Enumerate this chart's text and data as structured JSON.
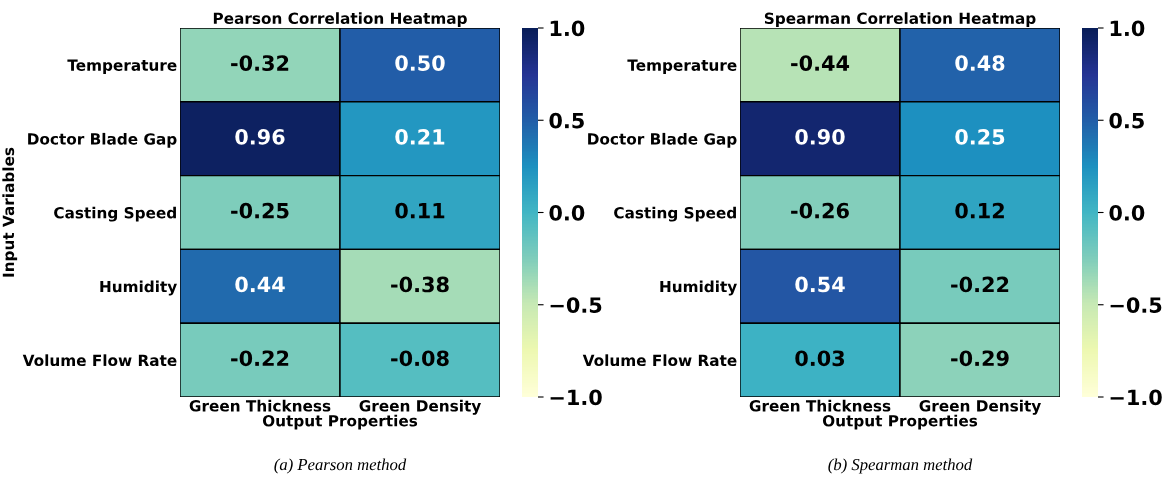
{
  "chart_data": [
    {
      "type": "heatmap",
      "title": "Pearson Correlation Heatmap",
      "xlabel": "Output Properties",
      "ylabel": "Input Variables",
      "categories": [
        "Green Thickness",
        "Green Density"
      ],
      "y_categories": [
        "Temperature",
        "Doctor Blade Gap",
        "Casting Speed",
        "Humidity",
        "Volume Flow Rate"
      ],
      "cells": [
        [
          -0.32,
          0.5
        ],
        [
          0.96,
          0.21
        ],
        [
          -0.25,
          0.11
        ],
        [
          0.44,
          -0.38
        ],
        [
          -0.22,
          -0.08
        ]
      ],
      "cell_labels": [
        [
          "-0.32",
          "0.50"
        ],
        [
          "0.96",
          "0.21"
        ],
        [
          "-0.25",
          "0.11"
        ],
        [
          "0.44",
          "-0.38"
        ],
        [
          "-0.22",
          "-0.08"
        ]
      ],
      "clim": [
        -1.0,
        1.0
      ],
      "cticks": [
        {
          "value": -1.0,
          "label": "−1.0"
        },
        {
          "value": -0.5,
          "label": "−0.5"
        },
        {
          "value": 0.0,
          "label": "0.0"
        },
        {
          "value": 0.5,
          "label": "0.5"
        },
        {
          "value": 1.0,
          "label": "1.0"
        }
      ],
      "annotations": [
        "(a) Pearson method"
      ]
    },
    {
      "type": "heatmap",
      "title": "Spearman Correlation Heatmap",
      "xlabel": "Output Properties",
      "categories": [
        "Green Thickness",
        "Green Density"
      ],
      "y_categories": [
        "Temperature",
        "Doctor Blade Gap",
        "Casting Speed",
        "Humidity",
        "Volume Flow Rate"
      ],
      "cells": [
        [
          -0.44,
          0.48
        ],
        [
          0.9,
          0.25
        ],
        [
          -0.26,
          0.12
        ],
        [
          0.54,
          -0.22
        ],
        [
          0.03,
          -0.29
        ]
      ],
      "cell_labels": [
        [
          "-0.44",
          "0.48"
        ],
        [
          "0.90",
          "0.25"
        ],
        [
          "-0.26",
          "0.12"
        ],
        [
          "0.54",
          "-0.22"
        ],
        [
          "0.03",
          "-0.29"
        ]
      ],
      "clim": [
        -1.0,
        1.0
      ],
      "cticks": [
        {
          "value": -1.0,
          "label": "−1.0"
        },
        {
          "value": -0.5,
          "label": "−0.5"
        },
        {
          "value": 0.0,
          "label": "0.0"
        },
        {
          "value": 0.5,
          "label": "0.5"
        },
        {
          "value": 1.0,
          "label": "1.0"
        }
      ],
      "annotations": [
        "(b) Spearman method"
      ]
    }
  ]
}
